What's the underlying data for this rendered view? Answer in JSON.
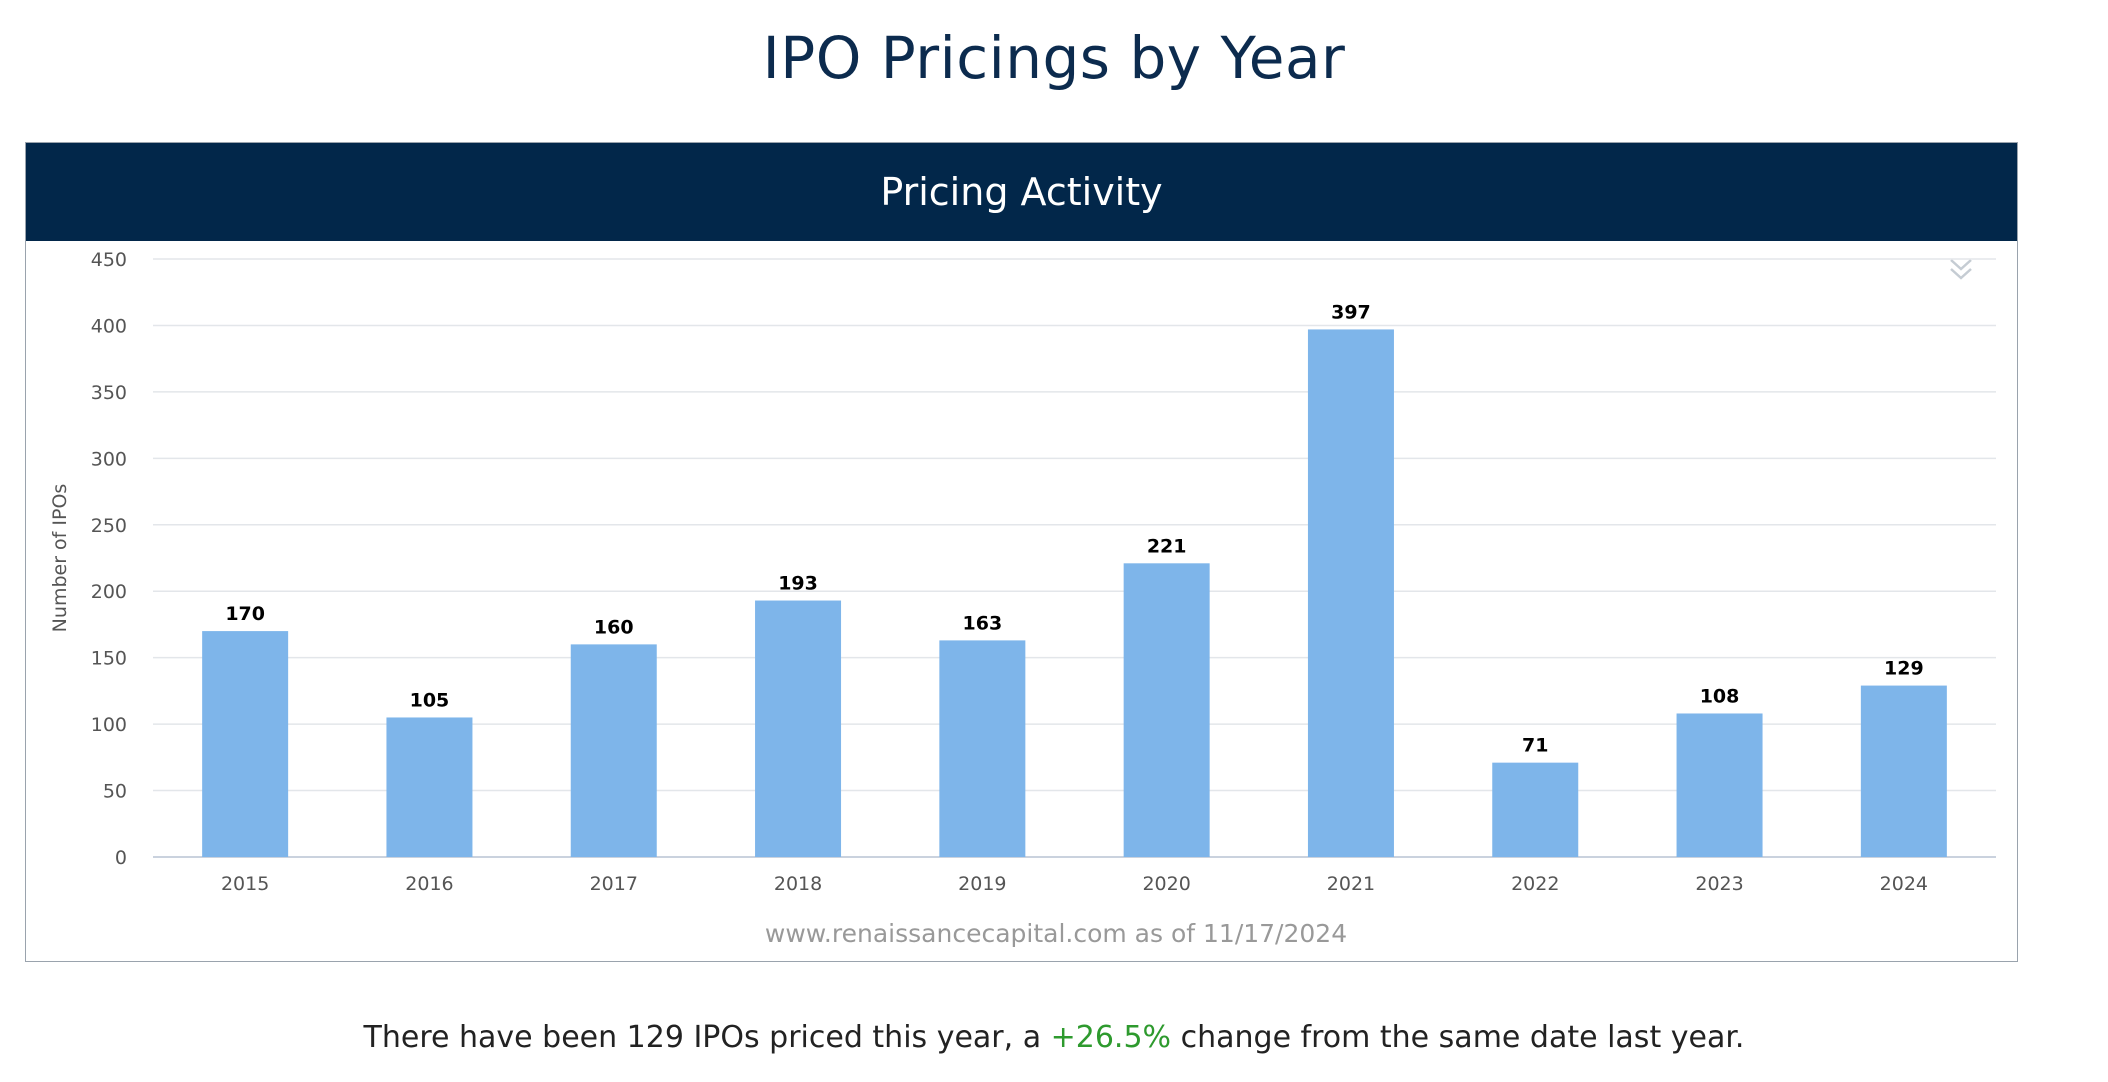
{
  "page": {
    "title": "IPO Pricings by Year"
  },
  "panel": {
    "header": "Pricing Activity",
    "menu_icon": "double-chevron-down-icon"
  },
  "chart_data": {
    "type": "bar",
    "title": "Pricing Activity",
    "categories": [
      "2015",
      "2016",
      "2017",
      "2018",
      "2019",
      "2020",
      "2021",
      "2022",
      "2023",
      "2024"
    ],
    "values": [
      170,
      105,
      160,
      193,
      163,
      221,
      397,
      71,
      108,
      129
    ],
    "ylabel": "Number of IPOs",
    "xlabel": "",
    "ylim": [
      0,
      450
    ],
    "yticks": [
      0,
      50,
      100,
      150,
      200,
      250,
      300,
      350,
      400,
      450
    ],
    "grid": true,
    "data_labels": true,
    "bar_color": "#7eb5ea",
    "credit": "www.renaissancecapital.com as of 11/17/2024"
  },
  "summary": {
    "prefix": "There have been 129 IPOs priced this year, a ",
    "change": "+26.5%",
    "suffix": " change from the same date last year.",
    "change_color": "#2e9a2e"
  }
}
